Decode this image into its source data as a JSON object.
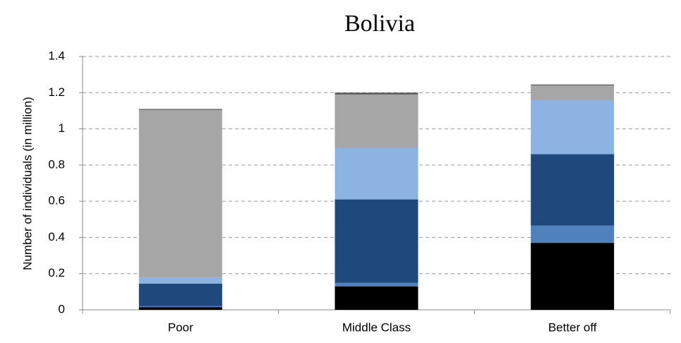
{
  "chart_data": {
    "type": "stacked-bar",
    "title": "Bolivia",
    "y_label": "Number  of individuals (in million)",
    "categories": [
      "Poor",
      "Middle Class",
      "Better off"
    ],
    "series": [
      {
        "color": "#000000",
        "values": [
          0.015,
          0.13,
          0.37
        ]
      },
      {
        "color": "#4f81bd",
        "values": [
          0.005,
          0.02,
          0.095
        ]
      },
      {
        "color": "#1f497d",
        "values": [
          0.125,
          0.46,
          0.395
        ]
      },
      {
        "color": "#8db3e2",
        "values": [
          0.035,
          0.285,
          0.3
        ]
      },
      {
        "color": "#a6a6a6",
        "values": [
          0.925,
          0.295,
          0.08
        ]
      },
      {
        "color": "#595959",
        "values": [
          0.005,
          0.01,
          0.005
        ]
      }
    ],
    "ylim": [
      0,
      1.4
    ],
    "yticks": [
      0,
      0.2,
      0.4,
      0.6,
      0.8,
      1,
      1.2,
      1.4
    ],
    "grid": true
  }
}
